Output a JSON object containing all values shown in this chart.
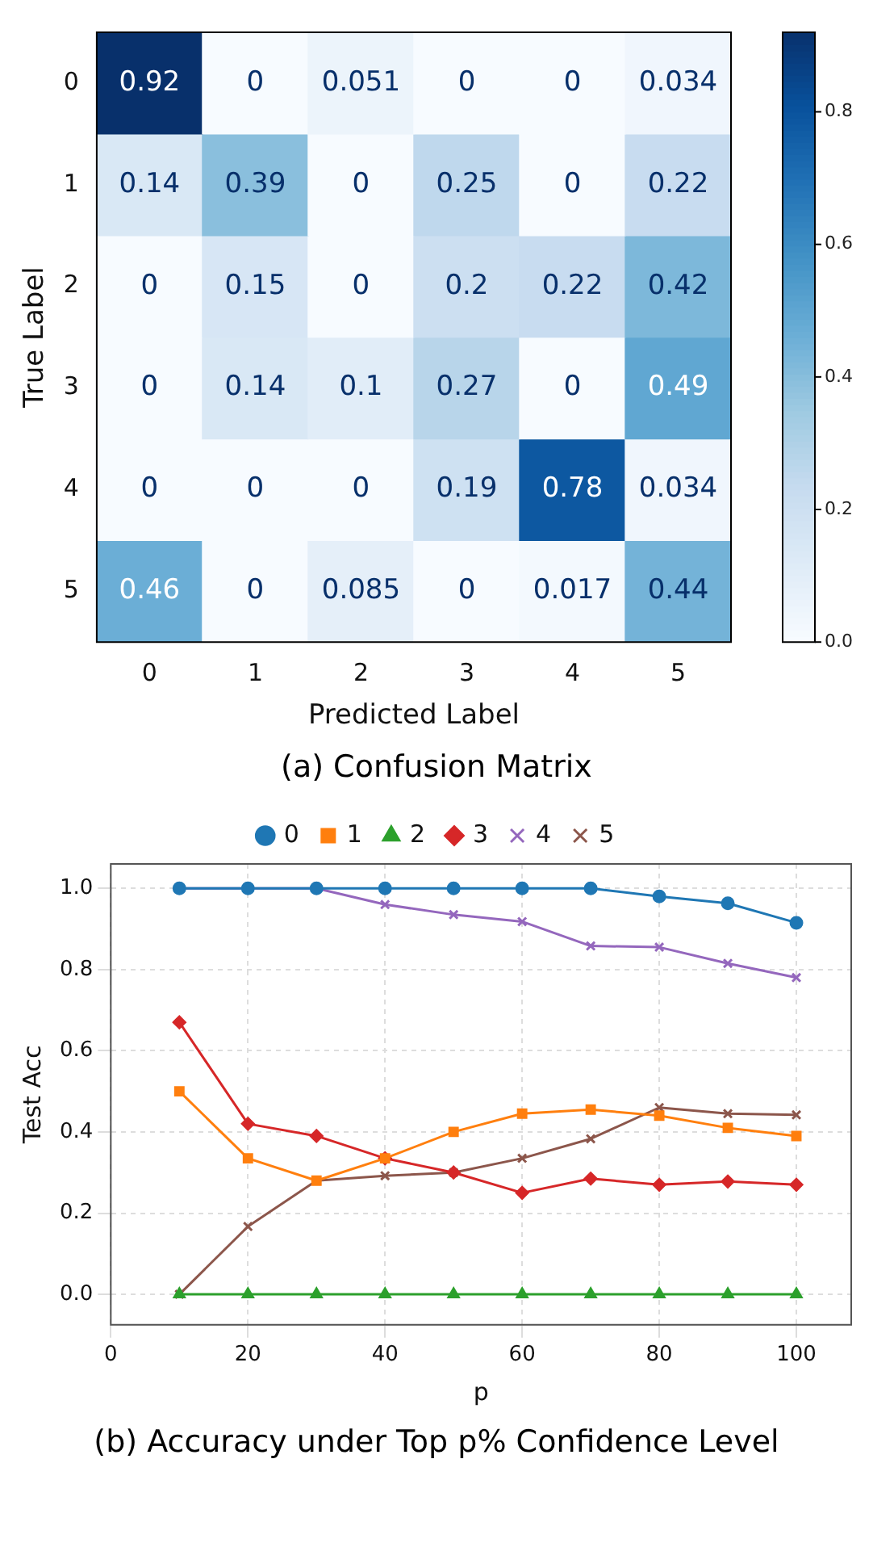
{
  "chart_data": [
    {
      "type": "heatmap",
      "title": "(a) Confusion Matrix",
      "xlabel": "Predicted Label",
      "ylabel": "True Label",
      "categories": [
        "0",
        "1",
        "2",
        "3",
        "4",
        "5"
      ],
      "y_categories": [
        "0",
        "1",
        "2",
        "3",
        "4",
        "5"
      ],
      "cells": [
        [
          0.92,
          0,
          0.051,
          0,
          0,
          0.034
        ],
        [
          0.14,
          0.39,
          0,
          0.25,
          0,
          0.22
        ],
        [
          0,
          0.15,
          0,
          0.2,
          0.22,
          0.42
        ],
        [
          0,
          0.14,
          0.1,
          0.27,
          0,
          0.49
        ],
        [
          0,
          0,
          0,
          0.19,
          0.78,
          0.034
        ],
        [
          0.46,
          0,
          0.085,
          0,
          0.017,
          0.44
        ]
      ],
      "clim": [
        0,
        0.92
      ],
      "cticks": [
        {
          "value": 0,
          "label": "0.0"
        },
        0.2,
        0.4,
        0.6,
        0.8
      ],
      "data_labels": true
    },
    {
      "type": "line",
      "title": "(b) Accuracy under Top p% Confidence Level",
      "xlabel": "p",
      "ylabel": "Test Acc",
      "x": [
        10,
        20,
        30,
        40,
        50,
        60,
        70,
        80,
        90,
        100
      ],
      "series": [
        {
          "name": "0",
          "color": "#1f77b4",
          "marker": "circle",
          "values": [
            1,
            1,
            1,
            1,
            1,
            1,
            1,
            0.98,
            0.963,
            0.915
          ]
        },
        {
          "name": "1",
          "color": "#ff7f0e",
          "marker": "square",
          "values": [
            0.5,
            0.335,
            0.28,
            0.335,
            0.4,
            0.445,
            0.455,
            0.44,
            0.41,
            0.39
          ]
        },
        {
          "name": "2",
          "color": "#2ca02c",
          "marker": "triangle",
          "values": [
            0,
            0,
            0,
            0,
            0,
            0,
            0,
            0,
            0,
            0
          ]
        },
        {
          "name": "3",
          "color": "#d62728",
          "marker": "diamond",
          "values": [
            0.67,
            0.42,
            0.39,
            0.335,
            0.3,
            0.25,
            0.285,
            0.27,
            0.278,
            0.27
          ]
        },
        {
          "name": "4",
          "color": "#9467bd",
          "marker": "cross",
          "values": [
            1,
            1,
            1,
            0.96,
            0.935,
            0.918,
            0.858,
            0.855,
            0.815,
            0.78
          ]
        },
        {
          "name": "5",
          "color": "#8c564b",
          "marker": "cross",
          "values": [
            0,
            0.167,
            0.28,
            0.292,
            0.3,
            0.335,
            0.383,
            0.46,
            0.445,
            0.442
          ]
        }
      ],
      "xlim": [
        0,
        108
      ],
      "xticks": [
        0,
        20,
        40,
        60,
        80,
        100
      ],
      "ylim": [
        -0.075,
        1.06
      ],
      "yticks": [
        {
          "value": 0,
          "label": "0.0"
        },
        0.2,
        0.4,
        0.6,
        0.8,
        {
          "value": 1,
          "label": "1.0"
        }
      ],
      "grid": true,
      "legend": "top",
      "line_style": "solid"
    }
  ]
}
